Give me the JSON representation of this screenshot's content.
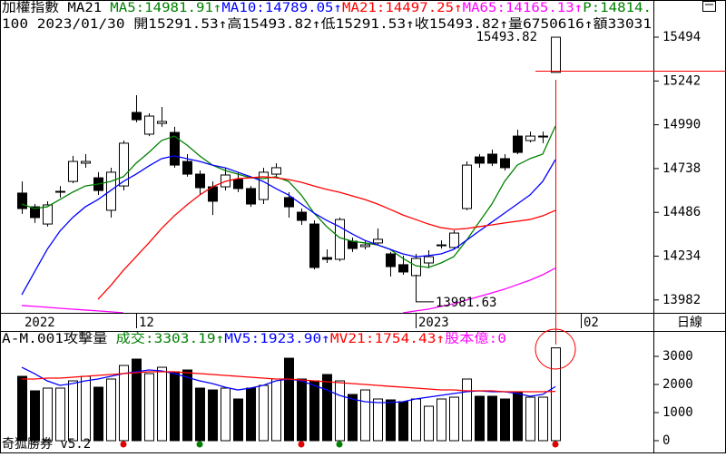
{
  "chart_data": [
    {
      "type": "candlestick",
      "title": "加權指數 MA21",
      "subtitle": "100 2023/01/30 開15291.53↑高15493.82↑低15291.53↑收15493.82↑量6750616↑額33031",
      "extra_label": {
        "text": "P:14814.",
        "color": "#008000"
      },
      "high_label": "15493.82",
      "low_label": "13981.63",
      "period_label": "日線",
      "footer": "奇狐勝券 v5.2",
      "categories": [
        "2022",
        null,
        null,
        null,
        null,
        null,
        null,
        null,
        null,
        "12",
        null,
        null,
        null,
        null,
        null,
        null,
        null,
        null,
        null,
        null,
        null,
        null,
        null,
        null,
        null,
        null,
        null,
        null,
        null,
        null,
        null,
        "2023",
        null,
        null,
        null,
        null,
        null,
        null,
        null,
        null,
        null,
        null,
        null,
        null,
        "02"
      ],
      "open": [
        14597,
        14518,
        14419,
        14602,
        14664,
        14769,
        14685,
        14498,
        14638,
        15061,
        14936,
        14998,
        14946,
        14779,
        14706,
        14633,
        14633,
        14675,
        14623,
        14560,
        14706,
        14571,
        14487,
        14419,
        14226,
        14216,
        14320,
        14289,
        14310,
        14247,
        14185,
        14122,
        14195,
        14294,
        14284,
        14508,
        14805,
        14821,
        14795,
        14925,
        14899,
        14920,
        15291.53,
        null,
        null
      ],
      "high": [
        14664,
        14534,
        14550,
        14638,
        14811,
        14821,
        14717,
        14743,
        14899,
        15160,
        15056,
        15092,
        14978,
        14821,
        14727,
        14664,
        14743,
        14717,
        14638,
        14743,
        14769,
        14602,
        14508,
        14440,
        14273,
        14456,
        14341,
        14325,
        14393,
        14258,
        14237,
        14247,
        14268,
        14325,
        14383,
        14779,
        14821,
        14847,
        14821,
        14962,
        14951,
        14951,
        15493.82,
        null,
        null
      ],
      "low": [
        14477,
        14425,
        14404,
        14571,
        14654,
        14743,
        14586,
        14456,
        14612,
        15004,
        14925,
        14978,
        14743,
        14691,
        14586,
        14471,
        14612,
        14602,
        14518,
        14534,
        14691,
        14456,
        14414,
        14158,
        14195,
        14205,
        14258,
        14273,
        14299,
        14117,
        14127,
        13981.63,
        14164,
        14278,
        14273,
        14498,
        14743,
        14753,
        14727,
        14821,
        14889,
        14884,
        15291.53,
        null,
        null
      ],
      "close": [
        14508,
        14456,
        14529,
        14607,
        14779,
        14779,
        14612,
        14717,
        14884,
        15019,
        15040,
        15009,
        14758,
        14706,
        14628,
        14550,
        14701,
        14623,
        14534,
        14717,
        14743,
        14518,
        14440,
        14169,
        14216,
        14445,
        14278,
        14299,
        14331,
        14174,
        14143,
        14221,
        14231,
        14299,
        14367,
        14758,
        14769,
        14769,
        14743,
        14831,
        14925,
        14925,
        15493.82,
        null,
        null
      ],
      "up_color": "#ffffff",
      "down_color": "#000000",
      "series": [
        {
          "label": "MA5:14981.91↑",
          "color": "#008000",
          "values": [
            14534,
            14508,
            14518,
            14560,
            14602,
            14638,
            14649,
            14664,
            14691,
            14769,
            14831,
            14899,
            14925,
            14873,
            14811,
            14758,
            14727,
            14706,
            14685,
            14680,
            14691,
            14664,
            14586,
            14482,
            14404,
            14341,
            14320,
            14310,
            14299,
            14273,
            14221,
            14179,
            14169,
            14195,
            14231,
            14325,
            14430,
            14534,
            14664,
            14758,
            14795,
            14821,
            14981.91,
            null,
            null
          ]
        },
        {
          "label": "MA10:14789.05↑",
          "color": "#0000ff",
          "values": [
            14012,
            14143,
            14273,
            14378,
            14456,
            14518,
            14560,
            14612,
            14664,
            14706,
            14753,
            14795,
            14811,
            14795,
            14779,
            14758,
            14743,
            14717,
            14691,
            14664,
            14623,
            14586,
            14534,
            14482,
            14440,
            14404,
            14362,
            14325,
            14299,
            14273,
            14247,
            14231,
            14237,
            14247,
            14273,
            14325,
            14378,
            14430,
            14482,
            14534,
            14586,
            14664,
            14789.05,
            null,
            null
          ]
        },
        {
          "label": "MA21:14497.25↑",
          "color": "#ff0000",
          "values": [
            null,
            null,
            null,
            null,
            null,
            null,
            13986,
            14065,
            14153,
            14231,
            14310,
            14393,
            14466,
            14529,
            14586,
            14633,
            14664,
            14680,
            14685,
            14691,
            14685,
            14675,
            14659,
            14638,
            14618,
            14602,
            14581,
            14560,
            14534,
            14503,
            14471,
            14445,
            14419,
            14398,
            14388,
            14393,
            14404,
            14414,
            14425,
            14435,
            14445,
            14466,
            14497.25,
            null,
            null
          ]
        },
        {
          "label": "MA65:14165.13↑",
          "color": "#ff00ff",
          "values": [
            13950,
            13945,
            13940,
            13934,
            13929,
            13924,
            13919,
            13914,
            13908,
            null,
            null,
            null,
            null,
            null,
            null,
            null,
            null,
            null,
            null,
            null,
            null,
            null,
            null,
            null,
            null,
            null,
            null,
            null,
            null,
            null,
            13908,
            13919,
            13929,
            13945,
            13960,
            13981,
            14002,
            14023,
            14044,
            14070,
            14096,
            14127,
            14165.13,
            null,
            null
          ]
        }
      ],
      "ylim": [
        13908,
        15614
      ],
      "yticks": [
        15494,
        15242,
        14990,
        14738,
        14486,
        14234,
        13982
      ]
    },
    {
      "type": "bar",
      "title": "A-M.001攻擊量",
      "value_label": {
        "text": "成交:3303.19↑",
        "color": "#008000"
      },
      "extra_label": {
        "text": "股本億:0",
        "color": "#ff00ff"
      },
      "values": [
        2290,
        1774,
        1871,
        1871,
        2129,
        2290,
        1903,
        2194,
        2677,
        2903,
        2387,
        2613,
        2452,
        2516,
        1871,
        1806,
        1871,
        1484,
        1871,
        1968,
        2194,
        2935,
        2194,
        2129,
        2355,
        2129,
        1645,
        1806,
        1484,
        1452,
        1387,
        1484,
        1226,
        1484,
        1548,
        2194,
        1581,
        1581,
        1484,
        1742,
        1548,
        1548,
        3303.19,
        null,
        null
      ],
      "series": [
        {
          "label": "MV5:1923.90↑",
          "color": "#0000ff",
          "values": [
            2613,
            2387,
            2129,
            1968,
            2032,
            2129,
            2194,
            2290,
            2387,
            2452,
            2516,
            2484,
            2387,
            2258,
            2129,
            2032,
            1903,
            1806,
            1871,
            1968,
            2129,
            2194,
            2129,
            1968,
            1806,
            1613,
            1484,
            1387,
            1355,
            1355,
            1387,
            1484,
            1548,
            1613,
            1677,
            1742,
            1774,
            1742,
            1742,
            1677,
            1581,
            1645,
            1923.9,
            null,
            null
          ]
        },
        {
          "label": "MV21:1754.43↑",
          "color": "#ff0000",
          "values": [
            2194,
            2194,
            2226,
            2226,
            2258,
            2290,
            2323,
            2355,
            2387,
            2419,
            2452,
            2452,
            2452,
            2419,
            2387,
            2355,
            2323,
            2290,
            2258,
            2226,
            2194,
            2194,
            2161,
            2129,
            2097,
            2065,
            2032,
            2000,
            1968,
            1935,
            1903,
            1871,
            1839,
            1806,
            1806,
            1774,
            1774,
            1774,
            1742,
            1742,
            1742,
            1742,
            1754.43,
            null,
            null
          ]
        }
      ],
      "ylim": [
        0,
        3840
      ],
      "yticks": [
        3000,
        2000,
        1000,
        0
      ]
    }
  ]
}
